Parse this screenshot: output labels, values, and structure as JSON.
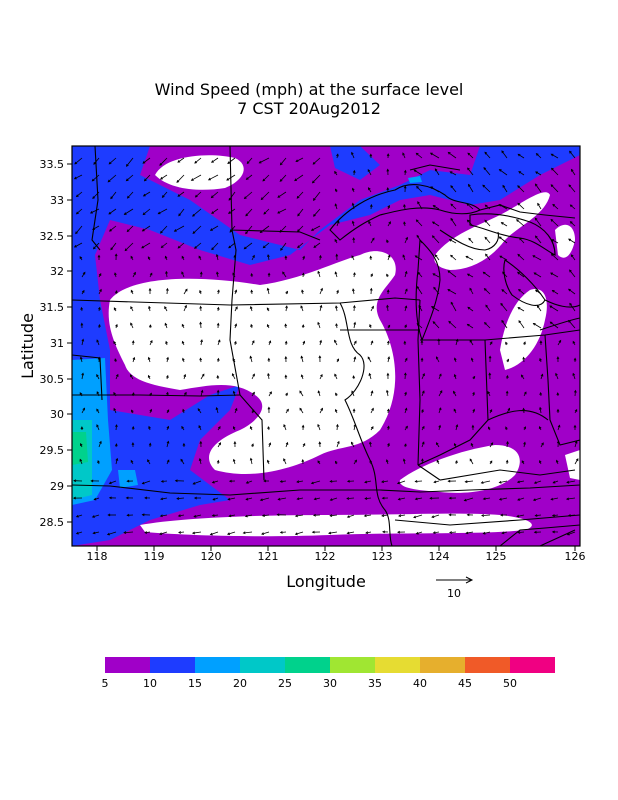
{
  "title": {
    "line1": "Wind Speed (mph) at the surface level",
    "line2": "7 CST 20Aug2012"
  },
  "map": {
    "xlabel": "Longitude",
    "ylabel": "Latitude",
    "x_ticks": [
      "118",
      "119",
      "120",
      "121",
      "122",
      "123",
      "124",
      "125",
      "126"
    ],
    "y_ticks": [
      "33.5",
      "33",
      "32.5",
      "32",
      "31.5",
      "31",
      "30.5",
      "30",
      "29.5",
      "29",
      "28.5"
    ],
    "reference_vector_label": "10"
  },
  "colorbar": {
    "labels": [
      "5",
      "10",
      "15",
      "20",
      "25",
      "30",
      "35",
      "40",
      "45",
      "50"
    ],
    "colors": [
      "#a000c8",
      "#1e3cff",
      "#00a0ff",
      "#00c8c8",
      "#00d28c",
      "#a0e632",
      "#e6dc32",
      "#e6af2d",
      "#f05a28",
      "#f00082"
    ]
  },
  "fill_colors": {
    "below_5": "#ffffff",
    "5_10": "#a000c8",
    "10_15": "#1e3cff",
    "15_20": "#00a0ff",
    "20_25": "#00c8c8",
    "25_30": "#00d28c"
  }
}
